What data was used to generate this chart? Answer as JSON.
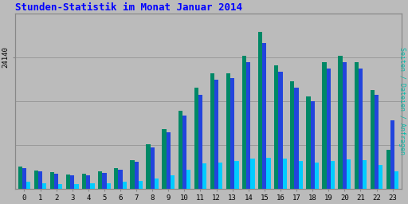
{
  "title": "Stunden-Statistik im Monat Januar 2014",
  "title_color": "#0000ff",
  "title_fontsize": 9,
  "ylabel_right": "Seiten / Dateien / Anfragen",
  "ylabel_right_color": "#00bbaa",
  "categories": [
    0,
    1,
    2,
    3,
    4,
    5,
    6,
    7,
    8,
    9,
    10,
    11,
    12,
    13,
    14,
    15,
    16,
    17,
    18,
    19,
    20,
    21,
    22,
    23
  ],
  "bar_green": [
    3400,
    2800,
    2500,
    2200,
    2300,
    2600,
    3100,
    4400,
    6800,
    9200,
    12000,
    15500,
    17800,
    17800,
    20500,
    24140,
    19000,
    16500,
    14200,
    19500,
    20500,
    19500,
    15200,
    6000
  ],
  "bar_blue": [
    3200,
    2600,
    2300,
    2000,
    2100,
    2400,
    2900,
    4100,
    6400,
    8700,
    11200,
    14500,
    16800,
    17000,
    19500,
    22500,
    18000,
    15500,
    13500,
    18500,
    19500,
    18500,
    14500,
    10500
  ],
  "bar_cyan": [
    1100,
    800,
    700,
    700,
    750,
    850,
    1000,
    1200,
    1600,
    2100,
    2900,
    3900,
    4000,
    4300,
    4600,
    4800,
    4600,
    4300,
    4000,
    4300,
    4500,
    4400,
    3600,
    2700
  ],
  "bar_green_color": "#008866",
  "bar_blue_color": "#2244dd",
  "bar_cyan_color": "#00ccff",
  "bg_color": "#bbbbbb",
  "plot_bg_color": "#bbbbbb",
  "border_color": "#888888",
  "ytick_label": "24140",
  "ylim": [
    0,
    27000
  ],
  "grid_color": "#999999",
  "grid_levels": [
    0,
    6750,
    13500,
    20250,
    27000
  ]
}
